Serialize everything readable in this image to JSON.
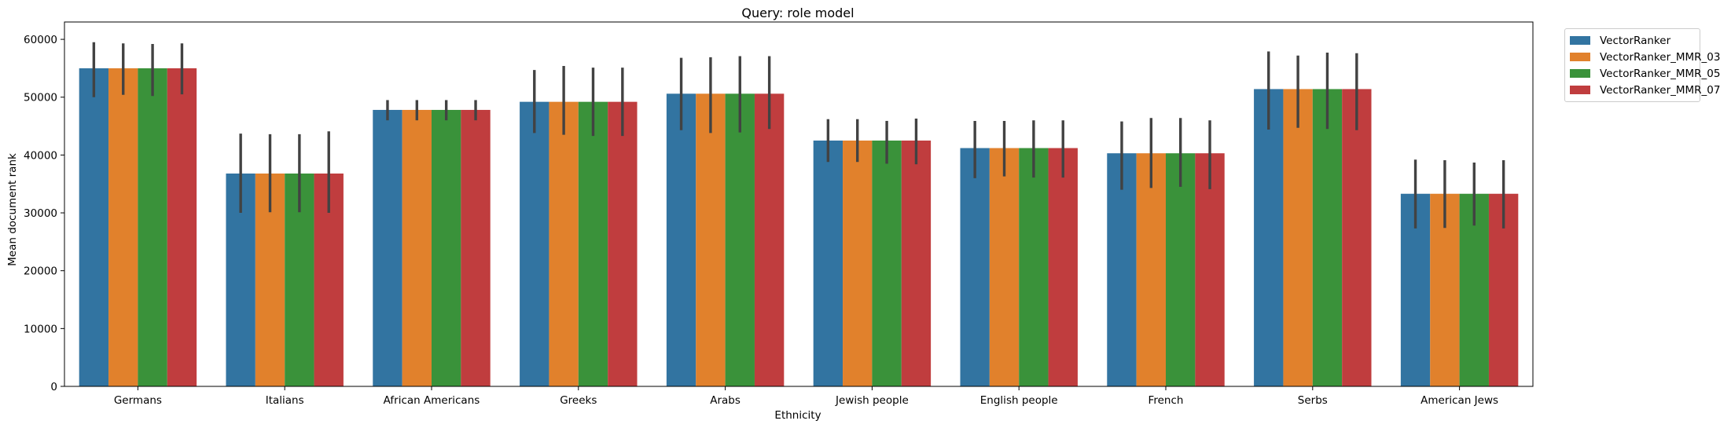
{
  "chart_data": {
    "type": "bar",
    "title": "Query: role model",
    "xlabel": "Ethnicity",
    "ylabel": "Mean document rank",
    "ylim": [
      0,
      63000
    ],
    "yticks": [
      0,
      10000,
      20000,
      30000,
      40000,
      50000,
      60000
    ],
    "grid": false,
    "legend_position": "outside-top-right",
    "categories": [
      "Germans",
      "Italians",
      "African Americans",
      "Greeks",
      "Arabs",
      "Jewish people",
      "English people",
      "French",
      "Serbs",
      "American Jews"
    ],
    "series": [
      {
        "name": "VectorRanker",
        "color": "#3274a1",
        "values": [
          55000,
          36800,
          47800,
          49200,
          50600,
          42500,
          41200,
          40300,
          51400,
          33300
        ],
        "error_low": [
          50000,
          30000,
          46000,
          43800,
          44300,
          38800,
          36000,
          34000,
          44400,
          27300
        ],
        "error_high": [
          59500,
          43700,
          49500,
          54700,
          56800,
          46200,
          45900,
          45800,
          57900,
          39200
        ]
      },
      {
        "name": "VectorRanker_MMR_03",
        "color": "#e1812c",
        "values": [
          55000,
          36800,
          47800,
          49200,
          50600,
          42500,
          41200,
          40300,
          51400,
          33300
        ],
        "error_low": [
          50400,
          30100,
          46000,
          43500,
          43800,
          38800,
          36300,
          34300,
          44700,
          27400
        ],
        "error_high": [
          59300,
          43600,
          49500,
          55400,
          56900,
          46200,
          45900,
          46400,
          57200,
          39100
        ]
      },
      {
        "name": "VectorRanker_MMR_05",
        "color": "#3a923a",
        "values": [
          55000,
          36800,
          47800,
          49200,
          50600,
          42500,
          41200,
          40300,
          51400,
          33300
        ],
        "error_low": [
          50200,
          30100,
          46000,
          43300,
          43900,
          38500,
          36100,
          34500,
          44500,
          27800
        ],
        "error_high": [
          59200,
          43600,
          49500,
          55100,
          57100,
          45900,
          46000,
          46400,
          57700,
          38700
        ]
      },
      {
        "name": "VectorRanker_MMR_07",
        "color": "#c03d3e",
        "values": [
          55000,
          36800,
          47800,
          49200,
          50600,
          42500,
          41200,
          40300,
          51400,
          33300
        ],
        "error_low": [
          50500,
          30000,
          46000,
          43300,
          44500,
          38400,
          36100,
          34100,
          44300,
          27300
        ],
        "error_high": [
          59300,
          44100,
          49500,
          55100,
          57100,
          46300,
          46000,
          46000,
          57600,
          39100
        ]
      }
    ]
  }
}
